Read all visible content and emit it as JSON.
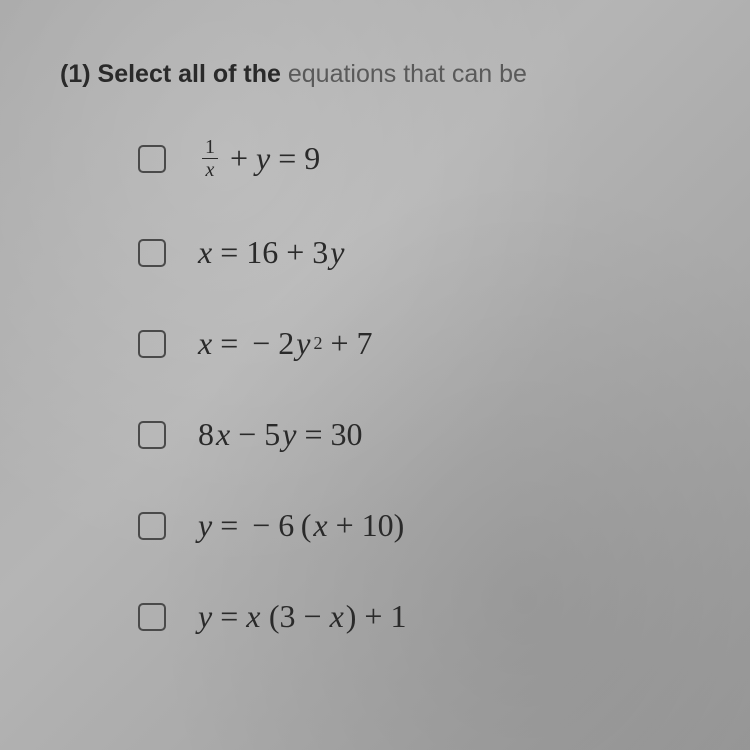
{
  "question": {
    "number": "(1)",
    "text_bold": "Select all of the",
    "text_light": "equations that can be"
  },
  "options": [
    {
      "id": "opt-1",
      "equation_html": "<span class='frac'><span class='num'>1</span><span class='den'>x</span></span><span class='op'>+</span><span class='var'>y</span><span class='op'>=</span>9"
    },
    {
      "id": "opt-2",
      "equation_html": "<span class='var'>x</span><span class='op'>=</span>16<span class='op'>+</span>3<span class='var'>y</span>"
    },
    {
      "id": "opt-3",
      "equation_html": "<span class='var'>x</span><span class='op'>=</span><span class='op'>−</span>2<span class='var'>y</span><span class='sup'>2</span><span class='op'>+</span>7"
    },
    {
      "id": "opt-4",
      "equation_html": "8<span class='var'>x</span><span class='op'>−</span>5<span class='var'>y</span><span class='op'>=</span>30"
    },
    {
      "id": "opt-5",
      "equation_html": "<span class='var'>y</span><span class='op'>=</span><span class='op'>−</span>6&thinsp;(<span class='var'>x</span><span class='op'>+</span>10)"
    },
    {
      "id": "opt-6",
      "equation_html": "<span class='var'>y</span><span class='op'>=</span><span class='var'>x</span>&thinsp;(3<span class='op'>−</span><span class='var'>x</span>)<span class='op'>+</span>1"
    }
  ],
  "style": {
    "background_gradient": [
      "#a8a8a8",
      "#b5b5b5",
      "#9a9a9a"
    ],
    "text_color": "#2a2a2a",
    "light_text_color": "#5a5a5a",
    "checkbox_border": "#4a4a4a",
    "question_fontsize": 25,
    "equation_fontsize": 32,
    "checkbox_size": 28,
    "option_spacing": 54
  }
}
